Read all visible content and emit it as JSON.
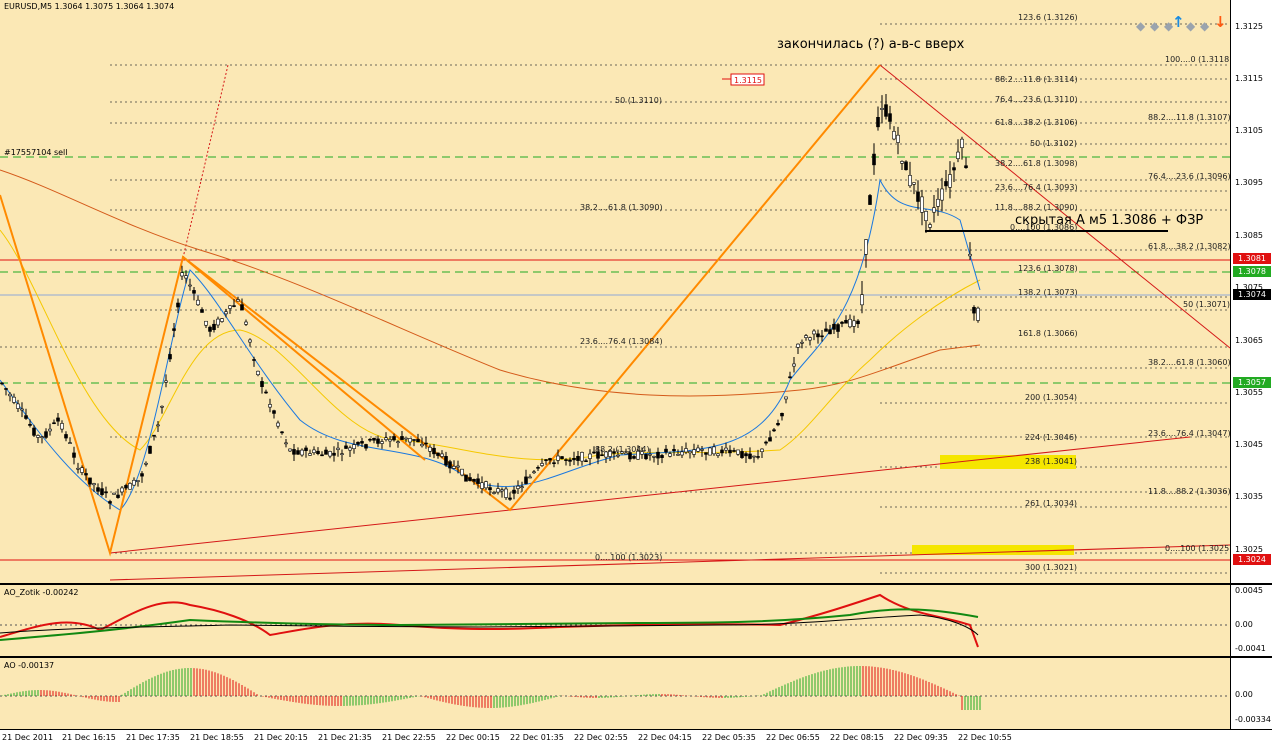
{
  "symbol_header": "EURUSD,M5  1.3064 1.3075 1.3064 1.3074",
  "annotations": {
    "title_note": "закончилась (?) а-в-с вверх",
    "hidden_note": "скрытая А м5 1.3086 + ФЗР",
    "order_label": "#17557104 sell",
    "price_flag": "1.3115"
  },
  "fib_levels": [
    "123.6 (1.3126)",
    "100....0 (1.3118)",
    "88.2....11.8 (1.3114)",
    "76.4....23.6 (1.3110)",
    "61.8....38.2 (1.3106)",
    "50 (1.3102)",
    "38.2....61.8 (1.3098)",
    "23.6....76.4 (1.3093)",
    "11.8....88.2 (1.3090)",
    "0....100 (1.3086)",
    "61.8....38.2 (1.3082)",
    "123.6 (1.3078)",
    "138.2 (1.3073)",
    "50 (1.3071)",
    "161.8 (1.3066)",
    "38.2....61.8 (1.3060)",
    "200 (1.3054)",
    "224 (1.3046)",
    "23.6....76.4 (1.3047)",
    "238 (1.3041)",
    "261 (1.3034)",
    "11.8....88.2 (1.3036)",
    "0....100 (1.3025)",
    "0....100 (1.3023)",
    "300 (1.3021)",
    "50 (1.3110)",
    "38.2....61.8 (1.3090)",
    "23.6....76.4 (1.3084)",
    "88.2....11.8 (1.3107)",
    "76.4....23.6 (1.3096)",
    "88.2 (1.3044)"
  ],
  "price_axis": {
    "labels": [
      "1.3125",
      "1.3115",
      "1.3105",
      "1.3095",
      "1.3085",
      "1.3075",
      "1.3065",
      "1.3055",
      "1.3045",
      "1.3035",
      "1.3025"
    ],
    "tags": [
      {
        "text": "1.3081",
        "bg": "#e01010",
        "fg": "#ffffff"
      },
      {
        "text": "1.3078",
        "bg": "#22aa22",
        "fg": "#ffffff"
      },
      {
        "text": "1.3074",
        "bg": "#000000",
        "fg": "#ffffff"
      },
      {
        "text": "1.3057",
        "bg": "#22aa22",
        "fg": "#ffffff"
      },
      {
        "text": "1.3024",
        "bg": "#e01010",
        "fg": "#ffffff"
      }
    ]
  },
  "ao_zotik": {
    "title": "AO_Zotik -0.00242",
    "labels": [
      "0.0045",
      "0.00",
      "-0.0041"
    ]
  },
  "ao": {
    "title": "AO -0.00137",
    "labels": [
      "0.00",
      "-0.00334"
    ]
  },
  "time_axis": [
    "21 Dec 2011",
    "21 Dec 16:15",
    "21 Dec 17:35",
    "21 Dec 18:55",
    "21 Dec 20:15",
    "21 Dec 21:35",
    "21 Dec 22:55",
    "22 Dec 00:15",
    "22 Dec 01:35",
    "22 Dec 02:55",
    "22 Dec 04:15",
    "22 Dec 05:35",
    "22 Dec 06:55",
    "22 Dec 08:15",
    "22 Dec 09:35",
    "22 Dec 10:55"
  ],
  "colors": {
    "background": "#fbe8b5",
    "wave": "#ff8a00",
    "trend": "#d41818",
    "ma_yellow": "#f5c800",
    "ma_blue": "#1a78e0",
    "level_green": "#22aa22",
    "ao_up": "#22aa22",
    "ao_down": "#e01010"
  }
}
